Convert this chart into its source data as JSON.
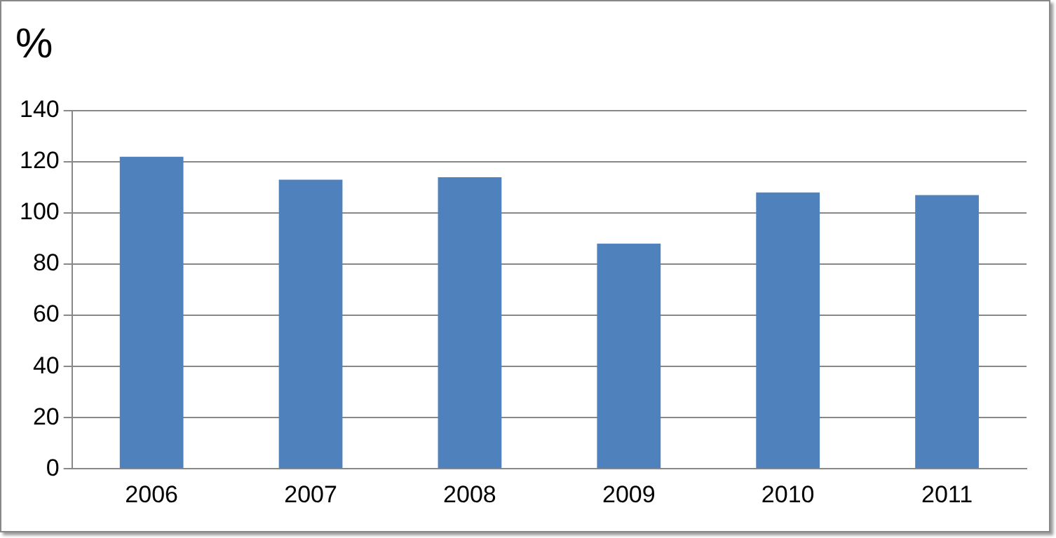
{
  "chart_data": {
    "type": "bar",
    "ylabel": "%",
    "categories": [
      "2006",
      "2007",
      "2008",
      "2009",
      "2010",
      "2011"
    ],
    "values": [
      122,
      113,
      114,
      88,
      108,
      107
    ],
    "color": "#4f81bd",
    "ylim": [
      0,
      140
    ],
    "yticks": [
      0,
      20,
      40,
      60,
      80,
      100,
      120,
      140
    ],
    "grid": "y",
    "legend": false
  }
}
